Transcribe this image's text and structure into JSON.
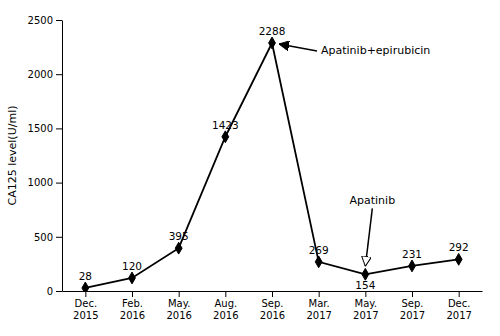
{
  "chart_data": {
    "type": "line",
    "categories": [
      "Dec.\n2015",
      "Feb.\n2016",
      "May.\n2016",
      "Aug.\n2016",
      "Sep.\n2016",
      "Mar.\n2017",
      "May.\n2017",
      "Sep.\n2017",
      "Dec.\n2017"
    ],
    "values": [
      28,
      120,
      395,
      1423,
      2288,
      269,
      154,
      231,
      292
    ],
    "color": "#000000",
    "marker": "diamond",
    "ylim": [
      0,
      2500
    ],
    "yticks": [
      0,
      500,
      1000,
      1500,
      2000,
      2500
    ],
    "ylabel": "CA125 level(U/ml)",
    "data_labels": true,
    "grid": false,
    "annotations": [
      {
        "text": "Apatinib+epirubicin",
        "at": "Sep.\n2016"
      },
      {
        "text": "Apatinib",
        "at": "May.\n2017"
      }
    ]
  }
}
